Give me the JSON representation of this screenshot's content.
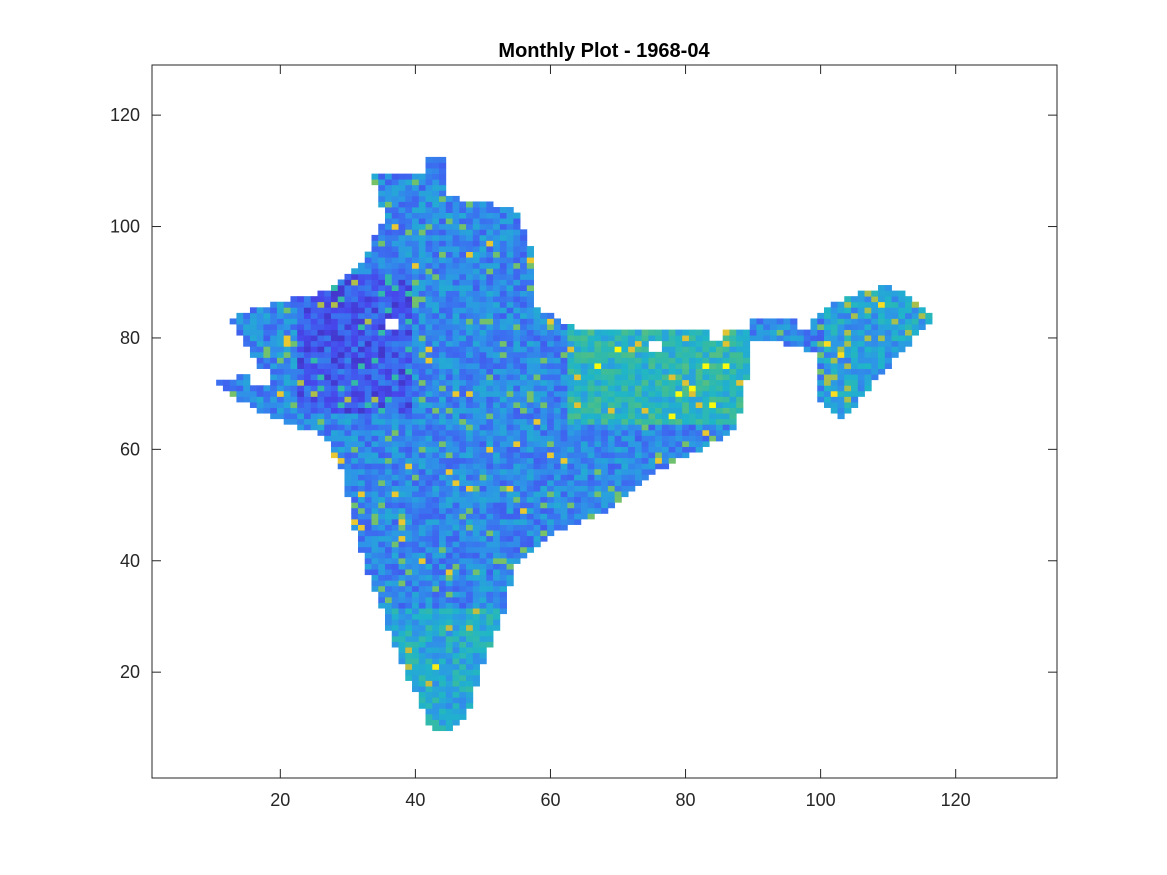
{
  "chart_data": {
    "type": "heatmap",
    "title": "Monthly Plot - 1968-04",
    "xlabel": "",
    "ylabel": "",
    "xlim": [
      1,
      135
    ],
    "ylim": [
      1,
      129
    ],
    "xticks": [
      20,
      40,
      60,
      80,
      100,
      120
    ],
    "yticks": [
      20,
      40,
      60,
      80,
      100,
      120
    ],
    "xtick_labels": [
      "20",
      "40",
      "60",
      "80",
      "100",
      "120"
    ],
    "ytick_labels": [
      "20",
      "40",
      "60",
      "80",
      "100",
      "120"
    ],
    "colormap": "parula",
    "colormap_stops": [
      "#3e26a8",
      "#4746eb",
      "#3b6ff0",
      "#2d97e6",
      "#1fb5c9",
      "#3ebd96",
      "#89c35b",
      "#d1bb3a",
      "#f9d12b",
      "#f9fb0e"
    ],
    "grid": false,
    "masked_color": "#ffffff",
    "outline": [
      [
        [
          45,
          113
        ],
        [
          45,
          106
        ],
        [
          55,
          104
        ],
        [
          58,
          96
        ],
        [
          58,
          86
        ],
        [
          65,
          82
        ],
        [
          80,
          82
        ],
        [
          90,
          82
        ],
        [
          90,
          76
        ],
        [
          88,
          64
        ],
        [
          82,
          60
        ],
        [
          75,
          56
        ],
        [
          70,
          50
        ],
        [
          62,
          46
        ],
        [
          55,
          40
        ],
        [
          54,
          32
        ],
        [
          50,
          20
        ],
        [
          48,
          12
        ],
        [
          46,
          10
        ],
        [
          43,
          10
        ],
        [
          40,
          18
        ],
        [
          36,
          30
        ],
        [
          33,
          40
        ],
        [
          31,
          48
        ],
        [
          30,
          56
        ],
        [
          27,
          63
        ],
        [
          20,
          66
        ],
        [
          13,
          70
        ],
        [
          11,
          73
        ],
        [
          18,
          74
        ],
        [
          15,
          80
        ],
        [
          13,
          84
        ],
        [
          20,
          87
        ],
        [
          28,
          89
        ],
        [
          33,
          95
        ],
        [
          36,
          102
        ],
        [
          34,
          110
        ],
        [
          42,
          110
        ],
        [
          42,
          113
        ]
      ],
      [
        [
          90,
          84
        ],
        [
          100,
          84
        ],
        [
          103,
          87
        ],
        [
          110,
          90
        ],
        [
          114,
          88
        ],
        [
          118,
          84
        ],
        [
          114,
          80
        ],
        [
          108,
          72
        ],
        [
          104,
          66
        ],
        [
          100,
          70
        ],
        [
          100,
          78
        ],
        [
          93,
          80
        ],
        [
          90,
          80
        ]
      ]
    ],
    "holes": [
      [
        36,
        82,
        2,
        2
      ],
      [
        75,
        78,
        2,
        2
      ],
      [
        84,
        80,
        2,
        2
      ],
      [
        16,
        72,
        3,
        3
      ],
      [
        97,
        82,
        2,
        2
      ]
    ]
  }
}
